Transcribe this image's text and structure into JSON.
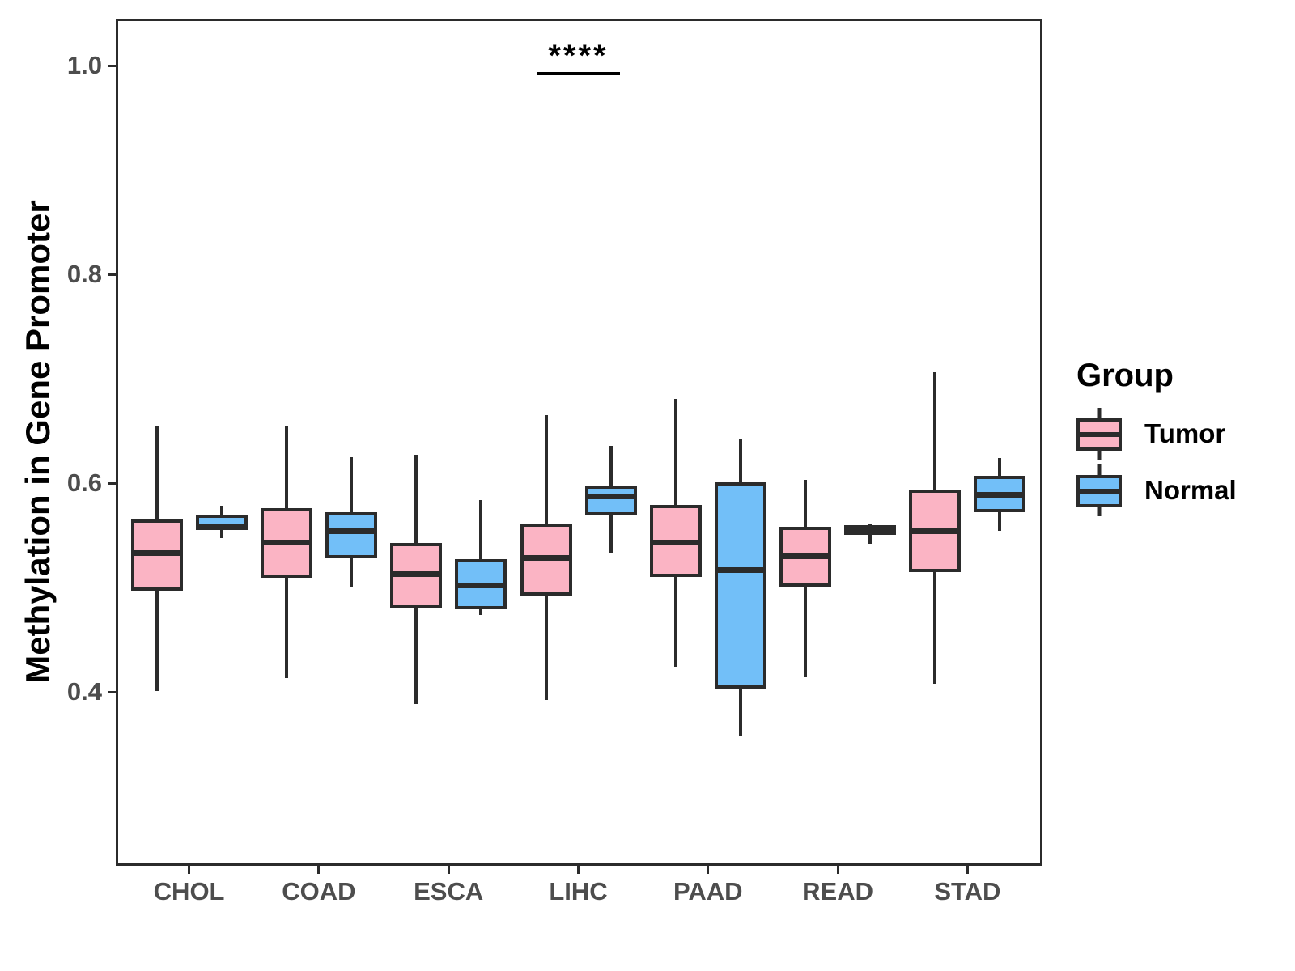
{
  "chart_data": {
    "type": "grouped_boxplot",
    "title": "",
    "xlabel": "",
    "ylabel": "Methylation in Gene Promoter",
    "categories": [
      "CHOL",
      "COAD",
      "ESCA",
      "LIHC",
      "PAAD",
      "READ",
      "STAD"
    ],
    "y_ticks": [
      {
        "value": 0.4,
        "label": "0.4"
      },
      {
        "value": 0.6,
        "label": "0.6"
      },
      {
        "value": 0.8,
        "label": "0.8"
      },
      {
        "value": 1.0,
        "label": "1.0"
      }
    ],
    "ylim": [
      0.27,
      1.06
    ],
    "grid": false,
    "colors": {
      "tumor_fill": "#FBB4C4",
      "normal_fill": "#72BFF8",
      "box_outline": "#2B2B2B",
      "tick_label": "#4D4D4D",
      "axis_title": "#000000"
    },
    "legend": {
      "title": "Group",
      "position": "right",
      "entries": [
        {
          "label": "Tumor",
          "color": "#FBB4C4"
        },
        {
          "label": "Normal",
          "color": "#72BFF8"
        }
      ]
    },
    "annotation": {
      "text": "****",
      "category": "LIHC",
      "category_index": 3,
      "line_y": 0.992,
      "meaning": "significance bracket over LIHC tumor vs normal"
    },
    "series": [
      {
        "name": "Tumor",
        "color": "#FBB4C4",
        "boxes": [
          {
            "category": "CHOL",
            "whisker_low": 0.401,
            "q1": 0.497,
            "median": 0.533,
            "q3": 0.565,
            "whisker_high": 0.655
          },
          {
            "category": "COAD",
            "whisker_low": 0.413,
            "q1": 0.509,
            "median": 0.543,
            "q3": 0.576,
            "whisker_high": 0.655
          },
          {
            "category": "ESCA",
            "whisker_low": 0.388,
            "q1": 0.48,
            "median": 0.513,
            "q3": 0.543,
            "whisker_high": 0.627
          },
          {
            "category": "LIHC",
            "whisker_low": 0.392,
            "q1": 0.492,
            "median": 0.528,
            "q3": 0.561,
            "whisker_high": 0.665
          },
          {
            "category": "PAAD",
            "whisker_low": 0.424,
            "q1": 0.51,
            "median": 0.543,
            "q3": 0.579,
            "whisker_high": 0.681
          },
          {
            "category": "READ",
            "whisker_low": 0.414,
            "q1": 0.501,
            "median": 0.53,
            "q3": 0.558,
            "whisker_high": 0.603
          },
          {
            "category": "STAD",
            "whisker_low": 0.408,
            "q1": 0.515,
            "median": 0.554,
            "q3": 0.594,
            "whisker_high": 0.706
          }
        ]
      },
      {
        "name": "Normal",
        "color": "#72BFF8",
        "boxes": [
          {
            "category": "CHOL",
            "whisker_low": 0.547,
            "q1": 0.555,
            "median": 0.558,
            "q3": 0.57,
            "whisker_high": 0.578
          },
          {
            "category": "COAD",
            "whisker_low": 0.501,
            "q1": 0.528,
            "median": 0.554,
            "q3": 0.572,
            "whisker_high": 0.625
          },
          {
            "category": "ESCA",
            "whisker_low": 0.474,
            "q1": 0.479,
            "median": 0.502,
            "q3": 0.527,
            "whisker_high": 0.584
          },
          {
            "category": "LIHC",
            "whisker_low": 0.533,
            "q1": 0.569,
            "median": 0.587,
            "q3": 0.598,
            "whisker_high": 0.636
          },
          {
            "category": "PAAD",
            "whisker_low": 0.357,
            "q1": 0.403,
            "median": 0.517,
            "q3": 0.601,
            "whisker_high": 0.643
          },
          {
            "category": "READ",
            "whisker_low": 0.542,
            "q1": 0.55,
            "median": 0.555,
            "q3": 0.56,
            "whisker_high": 0.561
          },
          {
            "category": "STAD",
            "whisker_low": 0.554,
            "q1": 0.572,
            "median": 0.589,
            "q3": 0.607,
            "whisker_high": 0.624
          }
        ]
      }
    ]
  }
}
